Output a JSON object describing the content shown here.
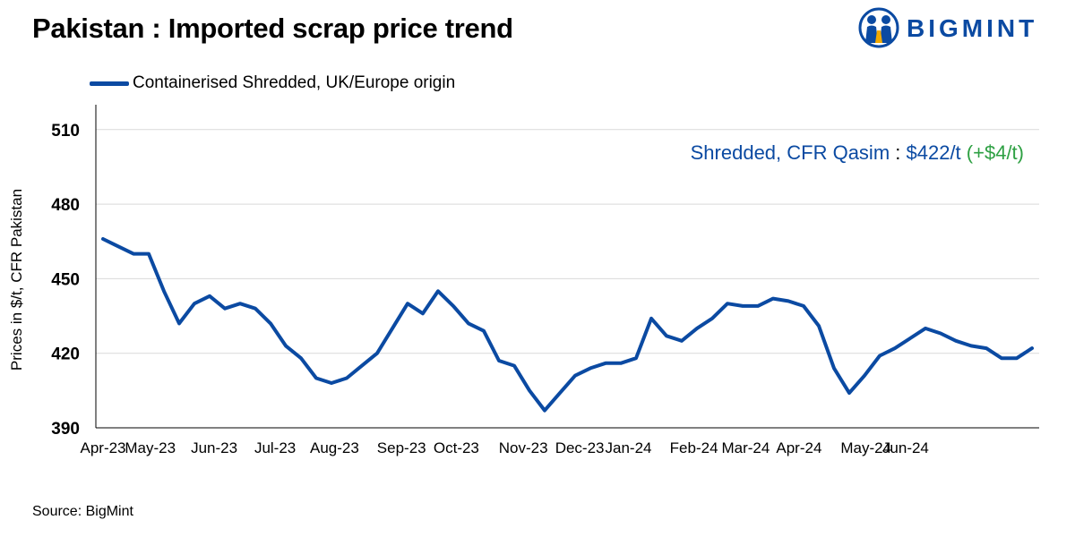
{
  "title": "Pakistan : Imported scrap price trend",
  "logo": {
    "text": "BIGMINT",
    "icon": "bigmint-people-icon",
    "color": "#0b4aa2"
  },
  "source": "Source: BigMint",
  "colors": {
    "series": "#0b4aa2",
    "change": "#2ea043",
    "grid": "#d9d9d9"
  },
  "chart_data": {
    "type": "line",
    "title": "Pakistan : Imported scrap price trend",
    "xlabel": "",
    "ylabel": "Prices in $/t, CFR Pakistan",
    "ylim": [
      390,
      520
    ],
    "yticks": [
      390,
      420,
      450,
      480,
      510
    ],
    "grid": true,
    "legend_position": "top-left",
    "x_ticks": [
      {
        "label": "Apr-23",
        "i": 0
      },
      {
        "label": "May-23",
        "i": 3.1
      },
      {
        "label": "Jun-23",
        "i": 7.3
      },
      {
        "label": "Jul-23",
        "i": 11.3
      },
      {
        "label": "Aug-23",
        "i": 15.2
      },
      {
        "label": "Sep-23",
        "i": 19.6
      },
      {
        "label": "Oct-23",
        "i": 23.2
      },
      {
        "label": "Nov-23",
        "i": 27.6
      },
      {
        "label": "Dec-23",
        "i": 31.3
      },
      {
        "label": "Jan-24",
        "i": 34.5
      },
      {
        "label": "Feb-24",
        "i": 38.8
      },
      {
        "label": "Mar-24",
        "i": 42.2
      },
      {
        "label": "Apr-24",
        "i": 45.7
      },
      {
        "label": "May-24",
        "i": 50.1
      },
      {
        "label": "Jun-24",
        "i": 52.7
      }
    ],
    "series": [
      {
        "name": "Containerised Shredded, UK/Europe origin",
        "values": [
          466,
          463,
          460,
          460,
          445,
          432,
          440,
          443,
          438,
          440,
          438,
          432,
          423,
          418,
          410,
          408,
          410,
          415,
          420,
          430,
          440,
          436,
          445,
          439,
          432,
          429,
          417,
          415,
          405,
          397,
          404,
          411,
          414,
          416,
          416,
          418,
          434,
          427,
          425,
          430,
          434,
          440,
          439,
          439,
          442,
          441,
          439,
          431,
          414,
          404,
          411,
          419,
          422,
          426,
          430,
          428,
          425,
          423,
          422,
          418,
          418,
          422
        ]
      }
    ],
    "annotation": {
      "label": "Shredded, CFR Qasim",
      "separator": " : ",
      "price": "$422/t",
      "change": "(+$4/t)"
    }
  }
}
